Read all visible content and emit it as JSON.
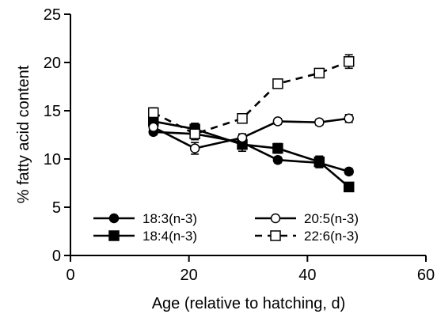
{
  "chart_data": {
    "type": "line",
    "xlabel": "Age (relative to hatching, d)",
    "ylabel": "% fatty acid content",
    "xlim": [
      0,
      60
    ],
    "ylim": [
      0,
      25
    ],
    "xticks": [
      0,
      20,
      40,
      60
    ],
    "yticks": [
      0,
      5,
      10,
      15,
      20,
      25
    ],
    "grid": false,
    "legend_position": "bottom-left",
    "x": [
      14,
      21,
      29,
      35,
      42,
      47
    ],
    "series": [
      {
        "name": "18:3(n-3)",
        "values": [
          12.8,
          12.6,
          11.7,
          9.9,
          9.6,
          8.7
        ],
        "errors": [
          0.3,
          0.4,
          0.4,
          0.3,
          0.4,
          0.3
        ],
        "marker": "filled-circle",
        "line": "solid"
      },
      {
        "name": "18:4(n-3)",
        "values": [
          13.9,
          13.1,
          11.5,
          11.1,
          9.7,
          7.1
        ],
        "errors": [
          0.5,
          0.6,
          0.7,
          0.5,
          0.6,
          0.3
        ],
        "marker": "filled-square",
        "line": "solid"
      },
      {
        "name": "20:5(n-3)",
        "values": [
          13.3,
          11.1,
          12.2,
          13.9,
          13.8,
          14.2
        ],
        "errors": [
          0.4,
          0.6,
          0.4,
          0.3,
          0.3,
          0.4
        ],
        "marker": "open-circle",
        "line": "solid"
      },
      {
        "name": "22:6(n-3)",
        "values": [
          14.8,
          12.6,
          14.2,
          17.8,
          18.9,
          20.1
        ],
        "errors": [
          0.5,
          0.6,
          0.3,
          0.4,
          0.3,
          0.7
        ],
        "marker": "open-square",
        "line": "dashed"
      }
    ]
  }
}
